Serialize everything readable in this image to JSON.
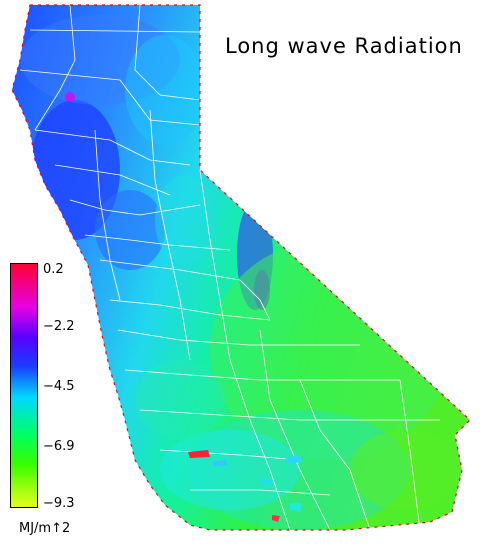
{
  "title": "Long wave Radiation",
  "legend": {
    "ticks": [
      "0.2",
      "−2.2",
      "−4.5",
      "−6.9",
      "−9.3"
    ],
    "units": "MJ/m↑2",
    "colors": {
      "max": "#ff0033",
      "upper": "#e600e6",
      "upper_mid": "#5a00ff",
      "mid": "#1a3cff",
      "lower_mid": "#00d9ff",
      "low": "#00ff66",
      "lower": "#33ff00",
      "min": "#e6ff1a"
    }
  },
  "map": {
    "region": "California",
    "boundary_color": "#ffffff",
    "edge_color": "#ff0000"
  }
}
